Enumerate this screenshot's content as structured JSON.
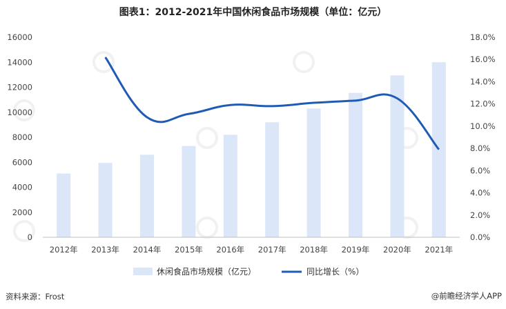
{
  "title": "图表1：2012-2021年中国休闲食品市场规模（单位：亿元）",
  "source": "资料来源：Frost",
  "brand": "@前瞻经济学人APP",
  "chart_data": {
    "type": "bar+line",
    "categories": [
      "2012年",
      "2013年",
      "2014年",
      "2015年",
      "2016年",
      "2017年",
      "2018年",
      "2019年",
      "2020年",
      "2021年"
    ],
    "series": [
      {
        "name": "休闲食品市场规模（亿元）",
        "type": "bar",
        "axis": "left",
        "values": [
          5100,
          5950,
          6600,
          7300,
          8200,
          9200,
          10300,
          11550,
          12950,
          14000
        ],
        "color": "#dbe6f9"
      },
      {
        "name": "同比增长（%）",
        "type": "line",
        "axis": "right",
        "values": [
          null,
          16.2,
          10.8,
          11.1,
          11.9,
          11.8,
          12.1,
          12.3,
          12.5,
          7.9
        ],
        "color": "#1f5bb5"
      }
    ],
    "y_left": {
      "min": 0,
      "max": 16000,
      "ticks": [
        "0",
        "2000",
        "4000",
        "6000",
        "8000",
        "10000",
        "12000",
        "14000",
        "16000"
      ]
    },
    "y_right": {
      "min": 0,
      "max": 18,
      "ticks": [
        "0.0%",
        "2.0%",
        "4.0%",
        "6.0%",
        "8.0%",
        "10.0%",
        "12.0%",
        "14.0%",
        "16.0%",
        "18.0%"
      ]
    },
    "legend_position": "bottom",
    "grid": false
  }
}
